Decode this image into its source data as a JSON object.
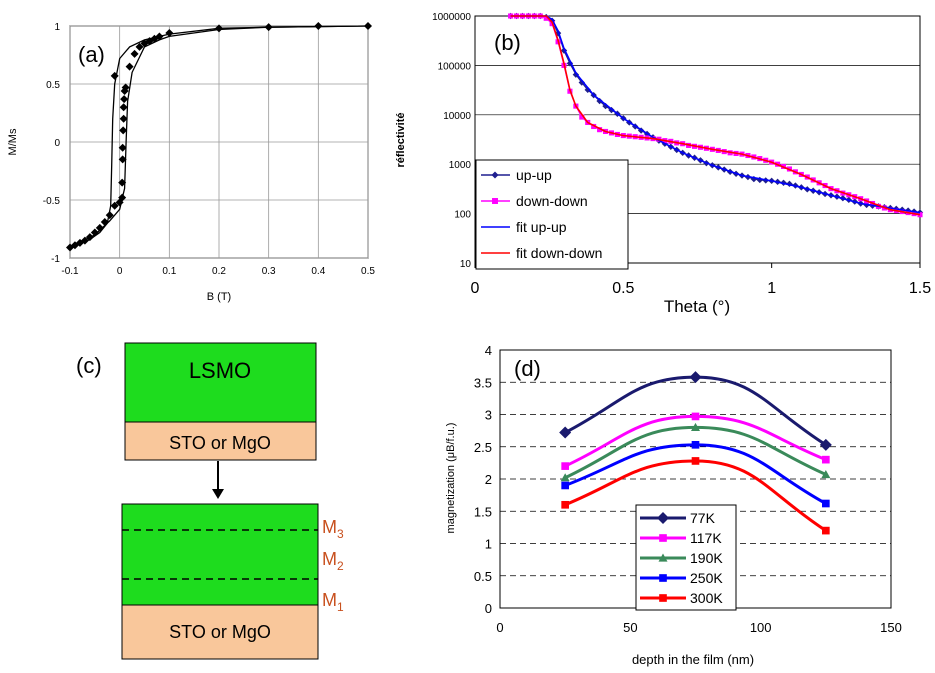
{
  "chart_data": [
    {
      "panel": "(a)",
      "type": "line",
      "xlabel": "B (T)",
      "ylabel": "M/Ms",
      "xlim": [
        -0.1,
        0.5
      ],
      "ylim": [
        -1,
        1
      ],
      "xticks": [
        "-0.1",
        "0",
        "0.1",
        "0.2",
        "0.3",
        "0.4",
        "0.5"
      ],
      "yticks": [
        "-1",
        "-0.5",
        "0",
        "0.5",
        "1"
      ],
      "grid": true,
      "series": [
        {
          "kind": "markers",
          "marker": "diamond",
          "color": "#000000",
          "points": [
            [
              -0.1,
              -0.91
            ],
            [
              -0.09,
              -0.89
            ],
            [
              -0.08,
              -0.87
            ],
            [
              -0.07,
              -0.85
            ],
            [
              -0.06,
              -0.82
            ],
            [
              -0.05,
              -0.78
            ],
            [
              -0.04,
              -0.74
            ],
            [
              -0.03,
              -0.69
            ],
            [
              -0.02,
              -0.63
            ],
            [
              -0.01,
              -0.55
            ],
            [
              0.0,
              -0.52
            ],
            [
              0.005,
              -0.48
            ],
            [
              0.005,
              -0.35
            ],
            [
              0.006,
              -0.15
            ],
            [
              0.006,
              -0.05
            ],
            [
              0.007,
              0.1
            ],
            [
              0.008,
              0.2
            ],
            [
              0.008,
              0.3
            ],
            [
              0.009,
              0.37
            ],
            [
              0.01,
              0.44
            ],
            [
              0.012,
              0.47
            ],
            [
              -0.01,
              0.57
            ],
            [
              0.02,
              0.65
            ],
            [
              0.03,
              0.76
            ],
            [
              0.04,
              0.82
            ],
            [
              0.05,
              0.85
            ],
            [
              0.06,
              0.87
            ],
            [
              0.07,
              0.89
            ],
            [
              0.08,
              0.91
            ],
            [
              0.1,
              0.94
            ],
            [
              0.2,
              0.98
            ],
            [
              0.3,
              0.99
            ],
            [
              0.4,
              1.0
            ],
            [
              0.5,
              1.0
            ]
          ]
        },
        {
          "kind": "line",
          "color": "#000000",
          "points": [
            [
              -0.1,
              -0.91
            ],
            [
              -0.06,
              -0.84
            ],
            [
              -0.04,
              -0.78
            ],
            [
              -0.025,
              -0.7
            ],
            [
              -0.018,
              -0.55
            ],
            [
              -0.016,
              -0.2
            ],
            [
              -0.014,
              0.2
            ],
            [
              -0.01,
              0.5
            ],
            [
              0.0,
              0.72
            ],
            [
              0.02,
              0.82
            ],
            [
              0.05,
              0.88
            ],
            [
              0.1,
              0.93
            ],
            [
              0.2,
              0.98
            ],
            [
              0.3,
              0.99
            ],
            [
              0.5,
              1.0
            ]
          ]
        },
        {
          "kind": "line",
          "color": "#000000",
          "points": [
            [
              -0.1,
              -0.91
            ],
            [
              -0.05,
              -0.8
            ],
            [
              -0.02,
              -0.68
            ],
            [
              0.0,
              -0.58
            ],
            [
              0.01,
              -0.4
            ],
            [
              0.013,
              0.0
            ],
            [
              0.016,
              0.35
            ],
            [
              0.025,
              0.6
            ],
            [
              0.05,
              0.82
            ],
            [
              0.08,
              0.88
            ],
            [
              0.1,
              0.91
            ],
            [
              0.2,
              0.97
            ],
            [
              0.3,
              0.99
            ],
            [
              0.5,
              1.0
            ]
          ]
        }
      ]
    },
    {
      "panel": "(b)",
      "type": "line",
      "xlabel": "Theta (°)",
      "ylabel": "réflectivité",
      "xlim": [
        0,
        1.5
      ],
      "ylim": [
        10,
        1000000
      ],
      "yscale": "log",
      "xticks": [
        "0",
        "0.5",
        "1",
        "1.5"
      ],
      "yticks": [
        "10",
        "100",
        "1000",
        "10000",
        "100000",
        "1000000"
      ],
      "legend_position": "left-bottom",
      "series": [
        {
          "name": "up-up",
          "color": "#1f1f8f",
          "marker": "diamond",
          "x": [
            0.12,
            0.14,
            0.16,
            0.18,
            0.2,
            0.22,
            0.24,
            0.26,
            0.28,
            0.3,
            0.32,
            0.34,
            0.36,
            0.38,
            0.4,
            0.42,
            0.44,
            0.46,
            0.48,
            0.5,
            0.52,
            0.54,
            0.56,
            0.58,
            0.6,
            0.62,
            0.64,
            0.66,
            0.68,
            0.7,
            0.72,
            0.74,
            0.76,
            0.78,
            0.8,
            0.82,
            0.84,
            0.86,
            0.88,
            0.9,
            0.92,
            0.94,
            0.96,
            0.98,
            1.0,
            1.02,
            1.04,
            1.06,
            1.08,
            1.1,
            1.12,
            1.14,
            1.16,
            1.18,
            1.2,
            1.22,
            1.24,
            1.26,
            1.28,
            1.3,
            1.32,
            1.34,
            1.36,
            1.38,
            1.4,
            1.42,
            1.44,
            1.46,
            1.48,
            1.5
          ],
          "y": [
            1000000,
            1000000,
            1000000,
            1000000,
            1000000,
            1000000,
            950000,
            800000,
            450000,
            200000,
            110000,
            65000,
            45000,
            32000,
            25000,
            19000,
            15000,
            12500,
            10500,
            8500,
            7000,
            5800,
            4800,
            4100,
            3500,
            3000,
            2600,
            2250,
            1950,
            1700,
            1500,
            1350,
            1200,
            1050,
            950,
            860,
            780,
            700,
            640,
            590,
            550,
            500,
            480,
            470,
            460,
            440,
            420,
            400,
            370,
            340,
            310,
            290,
            270,
            250,
            235,
            220,
            205,
            190,
            175,
            160,
            150,
            145,
            140,
            135,
            130,
            125,
            120,
            115,
            110,
            105
          ]
        },
        {
          "name": "down-down",
          "color": "#ff00ff",
          "marker": "square",
          "x": [
            0.12,
            0.14,
            0.16,
            0.18,
            0.2,
            0.22,
            0.24,
            0.26,
            0.28,
            0.3,
            0.32,
            0.34,
            0.36,
            0.38,
            0.4,
            0.42,
            0.44,
            0.46,
            0.48,
            0.5,
            0.52,
            0.54,
            0.56,
            0.58,
            0.6,
            0.62,
            0.64,
            0.66,
            0.68,
            0.7,
            0.72,
            0.74,
            0.76,
            0.78,
            0.8,
            0.82,
            0.84,
            0.86,
            0.88,
            0.9,
            0.92,
            0.94,
            0.96,
            0.98,
            1.0,
            1.02,
            1.04,
            1.06,
            1.08,
            1.1,
            1.12,
            1.14,
            1.16,
            1.18,
            1.2,
            1.22,
            1.24,
            1.26,
            1.28,
            1.3,
            1.32,
            1.34,
            1.36,
            1.38,
            1.4,
            1.42,
            1.44,
            1.46,
            1.48,
            1.5
          ],
          "y": [
            1000000,
            1000000,
            1000000,
            1000000,
            1000000,
            1000000,
            900000,
            700000,
            300000,
            100000,
            30000,
            15000,
            9000,
            7000,
            5800,
            5000,
            4600,
            4300,
            4000,
            3800,
            3700,
            3600,
            3500,
            3400,
            3300,
            3200,
            3000,
            2900,
            2700,
            2600,
            2400,
            2300,
            2200,
            2100,
            2000,
            1900,
            1800,
            1700,
            1650,
            1600,
            1500,
            1400,
            1300,
            1200,
            1100,
            1000,
            900,
            800,
            700,
            620,
            550,
            480,
            420,
            370,
            320,
            290,
            260,
            240,
            220,
            200,
            180,
            160,
            140,
            130,
            120,
            115,
            110,
            105,
            100,
            95
          ]
        },
        {
          "name": "fit up-up",
          "color": "#0000ff",
          "marker": "none",
          "x": [
            0.12,
            0.24,
            0.26,
            0.28,
            0.3,
            0.34,
            0.4,
            0.5,
            0.6,
            0.7,
            0.8,
            0.9,
            1.0,
            1.1,
            1.2,
            1.3,
            1.4,
            1.5
          ],
          "y": [
            1000000,
            1000000,
            850000,
            500000,
            220000,
            70000,
            25000,
            8500,
            3500,
            1700,
            950,
            590,
            460,
            340,
            235,
            160,
            130,
            105
          ]
        },
        {
          "name": "fit down-down",
          "color": "#ff0000",
          "marker": "none",
          "x": [
            0.12,
            0.24,
            0.26,
            0.28,
            0.3,
            0.32,
            0.34,
            0.38,
            0.44,
            0.5,
            0.6,
            0.7,
            0.8,
            0.9,
            1.0,
            1.1,
            1.2,
            1.3,
            1.4,
            1.5
          ],
          "y": [
            1000000,
            1000000,
            750000,
            320000,
            110000,
            32000,
            15000,
            7000,
            4600,
            3800,
            3300,
            2600,
            2000,
            1600,
            1100,
            620,
            320,
            200,
            120,
            95
          ]
        }
      ]
    },
    {
      "panel": "(d)",
      "type": "line",
      "xlabel": "depth in the film (nm)",
      "ylabel": "magnetization (μB/f.u.)",
      "xlim": [
        0,
        150
      ],
      "ylim": [
        0,
        4
      ],
      "xticks": [
        "0",
        "50",
        "100",
        "150"
      ],
      "yticks": [
        "0",
        "0.5",
        "1",
        "1.5",
        "2",
        "2.5",
        "3",
        "3.5",
        "4"
      ],
      "grid": "horizontal dashed",
      "legend_position": "center-bottom",
      "x": [
        25,
        75,
        125
      ],
      "series": [
        {
          "name": "77K",
          "color": "#1a1a6e",
          "marker": "diamond",
          "values": [
            2.72,
            3.58,
            2.53
          ]
        },
        {
          "name": "117K",
          "color": "#ff00ff",
          "marker": "square",
          "values": [
            2.2,
            2.97,
            2.3
          ]
        },
        {
          "name": "190K",
          "color": "#3a8a5a",
          "marker": "triangle",
          "values": [
            2.02,
            2.8,
            2.07
          ]
        },
        {
          "name": "250K",
          "color": "#0000ff",
          "marker": "square",
          "values": [
            1.9,
            2.53,
            1.62
          ]
        },
        {
          "name": "300K",
          "color": "#ff0000",
          "marker": "square",
          "values": [
            1.6,
            2.28,
            1.2
          ]
        }
      ]
    }
  ],
  "diagram_c": {
    "panel": "(c)",
    "top_stack": {
      "film": "LSMO",
      "substrate": "STO or MgO"
    },
    "bottom_stack": {
      "substrate": "STO or MgO"
    },
    "layers": [
      "M",
      "M",
      "M"
    ],
    "layer_subscripts": [
      "3",
      "2",
      "1"
    ],
    "film_color": "#1edc1e",
    "substrate_color": "#f9c79b",
    "layer_label_color": "#c8501e"
  }
}
